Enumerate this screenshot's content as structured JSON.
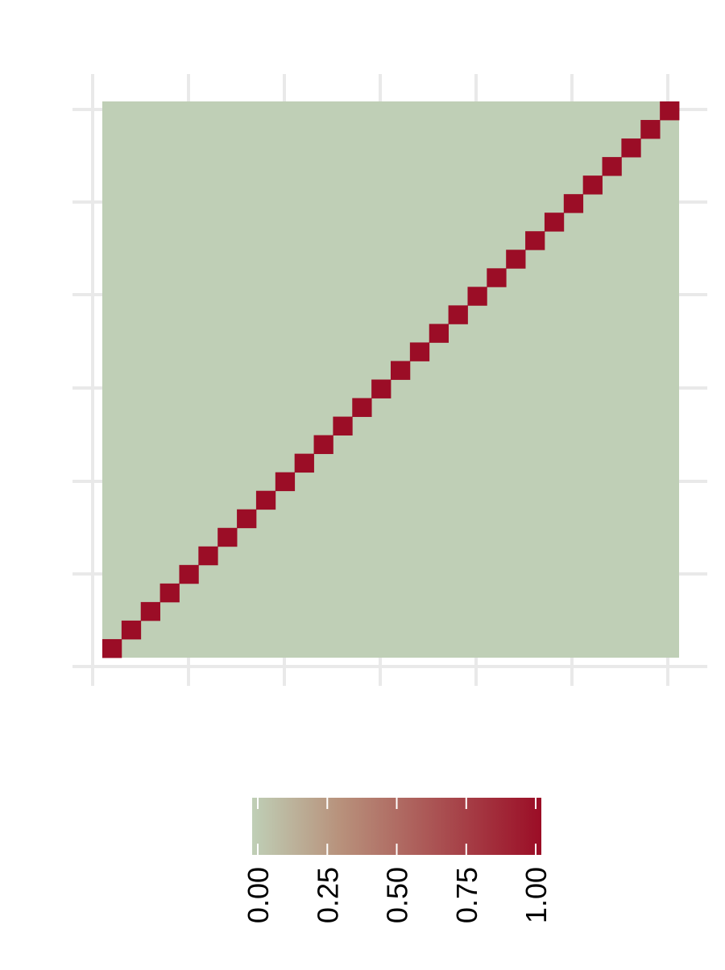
{
  "chart_data": {
    "type": "heatmap",
    "title": "",
    "xlabel": "",
    "ylabel": "",
    "n": 30,
    "matrix_description": "identity",
    "diagonal_value": 1,
    "off_diagonal_value": 0,
    "value_range": [
      0,
      1
    ],
    "x_tick_labels": [
      "",
      "",
      "",
      "",
      "",
      "",
      ""
    ],
    "y_tick_labels": [
      "",
      "",
      "",
      "",
      "",
      "",
      ""
    ],
    "grid": true,
    "colorbar": {
      "ticks": [
        0.0,
        0.25,
        0.5,
        0.75,
        1.0
      ],
      "tick_labels": [
        "0.00",
        "0.25",
        "0.50",
        "0.75",
        "1.00"
      ],
      "low_color": "#bfcfb6",
      "mid_color": "#b8927c",
      "high_color": "#9b0d26",
      "placement": "bottom"
    },
    "colors": {
      "background": "#ffffff",
      "grid": "#e9e9e9"
    }
  }
}
